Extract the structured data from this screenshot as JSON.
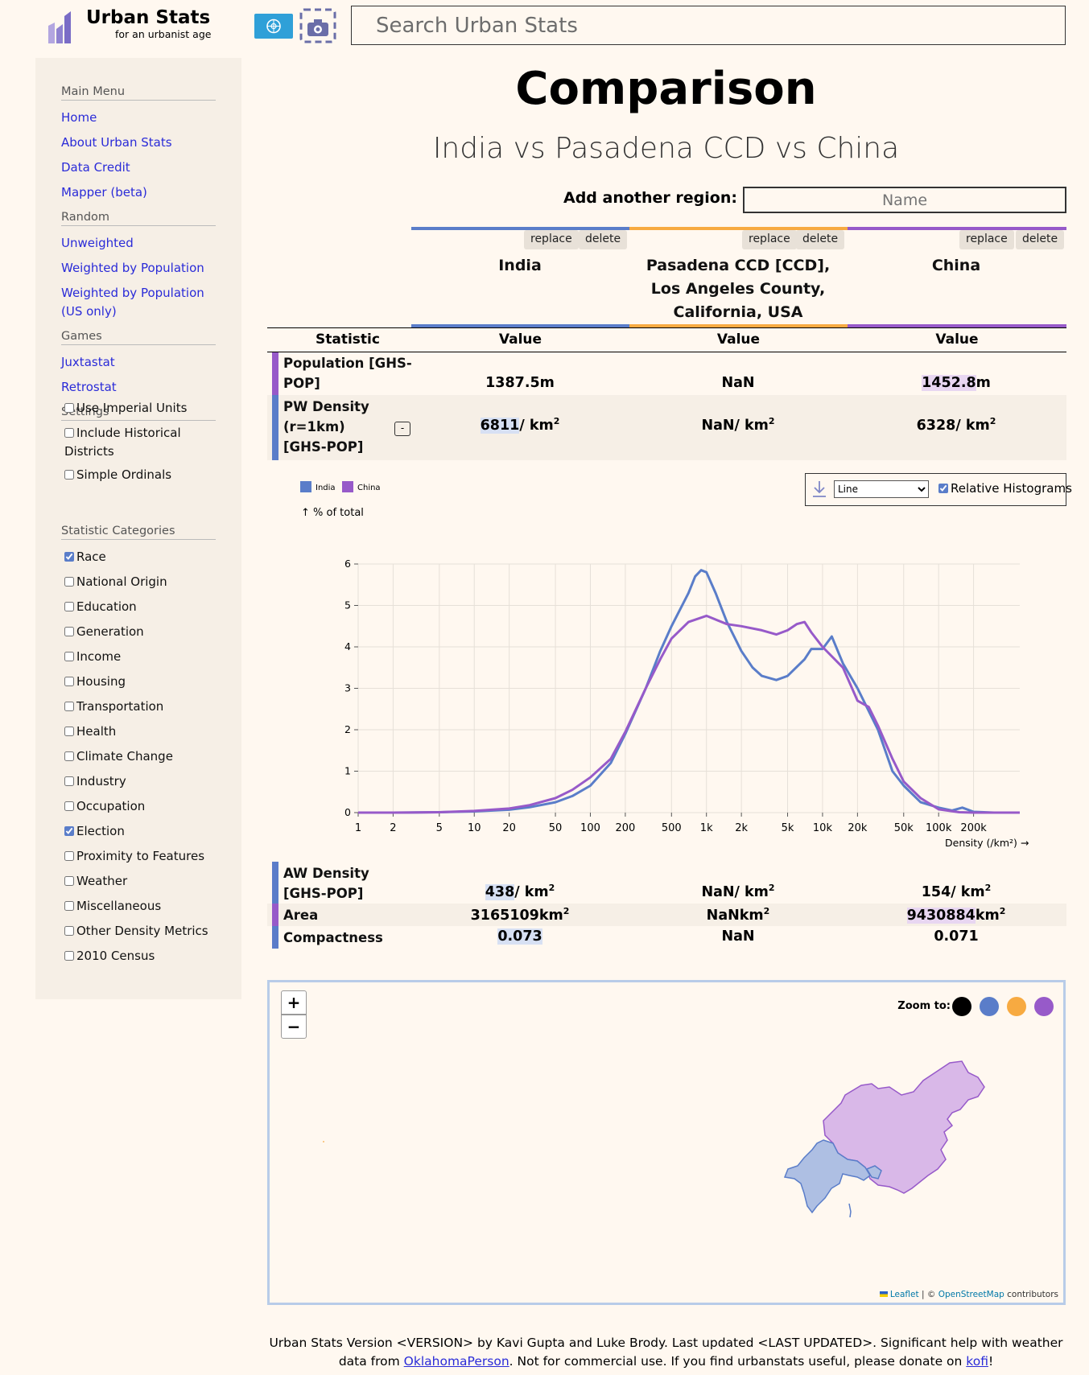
{
  "header": {
    "logo_title": "Urban Stats",
    "logo_subtitle": "for an urbanist age",
    "search_placeholder": "Search Urban Stats"
  },
  "sidebar": {
    "main_menu": "Main Menu",
    "links": [
      "Home",
      "About Urban Stats",
      "Data Credit",
      "Mapper (beta)"
    ],
    "random": "Random",
    "random_links": [
      "Unweighted",
      "Weighted by Population",
      "Weighted by Population (US only)"
    ],
    "games": "Games",
    "game_links": [
      "Juxtastat",
      "Retrostat"
    ],
    "settings": "Settings",
    "setting_checks": [
      {
        "label": "Use Imperial Units",
        "checked": false
      },
      {
        "label": "Include Historical Districts",
        "checked": false
      },
      {
        "label": "Simple Ordinals",
        "checked": false
      }
    ],
    "stat_categories": "Statistic Categories",
    "category_checks": [
      {
        "label": "Race",
        "checked": true
      },
      {
        "label": "National Origin",
        "checked": false
      },
      {
        "label": "Education",
        "checked": false
      },
      {
        "label": "Generation",
        "checked": false
      },
      {
        "label": "Income",
        "checked": false
      },
      {
        "label": "Housing",
        "checked": false
      },
      {
        "label": "Transportation",
        "checked": false
      },
      {
        "label": "Health",
        "checked": false
      },
      {
        "label": "Climate Change",
        "checked": false
      },
      {
        "label": "Industry",
        "checked": false
      },
      {
        "label": "Occupation",
        "checked": false
      },
      {
        "label": "Election",
        "checked": true
      },
      {
        "label": "Proximity to Features",
        "checked": false
      },
      {
        "label": "Weather",
        "checked": false
      },
      {
        "label": "Miscellaneous",
        "checked": false
      },
      {
        "label": "Other Density Metrics",
        "checked": false
      },
      {
        "label": "2010 Census",
        "checked": false
      }
    ]
  },
  "main": {
    "title": "Comparison",
    "subtitle": "India vs Pasadena CCD vs China",
    "add_region_label": "Add another region:",
    "add_region_placeholder": "Name",
    "replace_label": "replace",
    "delete_label": "delete",
    "regions": [
      {
        "name": "India",
        "color": "#5a7dc9"
      },
      {
        "name": "Pasadena CCD [CCD], Los Angeles County, California, USA",
        "color": "#f7aa41"
      },
      {
        "name": "China",
        "color": "#975ac9"
      }
    ],
    "col_statistic": "Statistic",
    "col_value": "Value",
    "stats": {
      "population": {
        "name": "Population [GHS-POP]",
        "v": [
          "1387.5",
          "NaN",
          "1452.8"
        ],
        "unit": "m"
      },
      "pw_density": {
        "name": "PW Density (r=1km) [GHS-POP]",
        "v": [
          "6811",
          "NaN",
          "6328"
        ],
        "unit": "/ km",
        "toggle": "-"
      },
      "aw_density": {
        "name": "AW Density [GHS-POP]",
        "v": [
          "438",
          "NaN",
          "154"
        ],
        "unit": "/ km"
      },
      "area": {
        "name": "Area",
        "v": [
          "3165109",
          "NaN",
          "9430884"
        ],
        "unit": "km"
      },
      "compactness": {
        "name": "Compactness",
        "v": [
          "0.073",
          "NaN",
          "0.071"
        ]
      }
    },
    "sup2": "2"
  },
  "chart_controls": {
    "select_value": "Line",
    "relative_label": "Relative Histograms",
    "relative_checked": true
  },
  "chart_data": {
    "type": "line",
    "ylabel": "↑ % of total",
    "xlabel": "Density (/km²) →",
    "x_log_scale": true,
    "ylim": [
      0,
      6
    ],
    "y_ticks": [
      "0",
      "1",
      "2",
      "3",
      "4",
      "5",
      "6"
    ],
    "x_ticks": [
      {
        "value": 1,
        "label": "1"
      },
      {
        "value": 2,
        "label": "2"
      },
      {
        "value": 5,
        "label": "5"
      },
      {
        "value": 10,
        "label": "10"
      },
      {
        "value": 20,
        "label": "20"
      },
      {
        "value": 50,
        "label": "50"
      },
      {
        "value": 100,
        "label": "100"
      },
      {
        "value": 200,
        "label": "200"
      },
      {
        "value": 500,
        "label": "500"
      },
      {
        "value": 1000,
        "label": "1k"
      },
      {
        "value": 2000,
        "label": "2k"
      },
      {
        "value": 5000,
        "label": "5k"
      },
      {
        "value": 10000,
        "label": "10k"
      },
      {
        "value": 20000,
        "label": "20k"
      },
      {
        "value": 50000,
        "label": "50k"
      },
      {
        "value": 100000,
        "label": "100k"
      },
      {
        "value": 200000,
        "label": "200k"
      }
    ],
    "legend_position": "top-left",
    "grid": true,
    "series": [
      {
        "name": "India",
        "color": "#5a7dc9",
        "points": [
          [
            1,
            0
          ],
          [
            2,
            0
          ],
          [
            5,
            0.01
          ],
          [
            10,
            0.03
          ],
          [
            20,
            0.07
          ],
          [
            30,
            0.13
          ],
          [
            50,
            0.25
          ],
          [
            70,
            0.4
          ],
          [
            100,
            0.65
          ],
          [
            150,
            1.2
          ],
          [
            200,
            1.9
          ],
          [
            300,
            3.0
          ],
          [
            400,
            3.9
          ],
          [
            500,
            4.5
          ],
          [
            700,
            5.3
          ],
          [
            800,
            5.7
          ],
          [
            900,
            5.85
          ],
          [
            1000,
            5.8
          ],
          [
            1200,
            5.3
          ],
          [
            1500,
            4.6
          ],
          [
            2000,
            3.9
          ],
          [
            2500,
            3.5
          ],
          [
            3000,
            3.3
          ],
          [
            4000,
            3.2
          ],
          [
            5000,
            3.3
          ],
          [
            7000,
            3.7
          ],
          [
            8000,
            3.95
          ],
          [
            10000,
            3.95
          ],
          [
            12000,
            4.25
          ],
          [
            15000,
            3.6
          ],
          [
            20000,
            3.0
          ],
          [
            30000,
            2.0
          ],
          [
            40000,
            1.0
          ],
          [
            50000,
            0.65
          ],
          [
            70000,
            0.25
          ],
          [
            100000,
            0.12
          ],
          [
            130000,
            0.05
          ],
          [
            160000,
            0.12
          ],
          [
            200000,
            0.02
          ],
          [
            300000,
            0
          ],
          [
            500000,
            0
          ]
        ]
      },
      {
        "name": "China",
        "color": "#975ac9",
        "points": [
          [
            1,
            0
          ],
          [
            2,
            0
          ],
          [
            5,
            0.01
          ],
          [
            10,
            0.04
          ],
          [
            20,
            0.1
          ],
          [
            30,
            0.18
          ],
          [
            50,
            0.35
          ],
          [
            70,
            0.55
          ],
          [
            100,
            0.85
          ],
          [
            150,
            1.3
          ],
          [
            200,
            1.95
          ],
          [
            300,
            3.0
          ],
          [
            400,
            3.7
          ],
          [
            500,
            4.2
          ],
          [
            700,
            4.6
          ],
          [
            1000,
            4.75
          ],
          [
            1500,
            4.55
          ],
          [
            2000,
            4.5
          ],
          [
            3000,
            4.4
          ],
          [
            4000,
            4.3
          ],
          [
            5000,
            4.4
          ],
          [
            6000,
            4.55
          ],
          [
            7000,
            4.6
          ],
          [
            8000,
            4.35
          ],
          [
            10000,
            4.0
          ],
          [
            15000,
            3.5
          ],
          [
            20000,
            2.7
          ],
          [
            25000,
            2.55
          ],
          [
            30000,
            2.1
          ],
          [
            40000,
            1.3
          ],
          [
            50000,
            0.75
          ],
          [
            70000,
            0.35
          ],
          [
            100000,
            0.08
          ],
          [
            150000,
            0.01
          ],
          [
            200000,
            0
          ],
          [
            500000,
            0
          ]
        ]
      }
    ]
  },
  "map": {
    "zoom_in": "+",
    "zoom_out": "−",
    "zoom_to_label": "Zoom to:",
    "zoom_colors": [
      "#000000",
      "#5a7dc9",
      "#f7aa41",
      "#975ac9"
    ],
    "attribution_leaflet": "Leaflet",
    "attribution_sep": " | © ",
    "attribution_osm": "OpenStreetMap",
    "attribution_tail": " contributors"
  },
  "footer": {
    "line1": "Urban Stats Version <VERSION> by Kavi Gupta and Luke Brody. Last updated <LAST UPDATED>. Significant help with weather data from ",
    "link1": "OklahomaPerson",
    "line2": ". Not for commercial use. If you find urbanstats useful, please donate on ",
    "link2": "kofi",
    "line3": "!"
  }
}
